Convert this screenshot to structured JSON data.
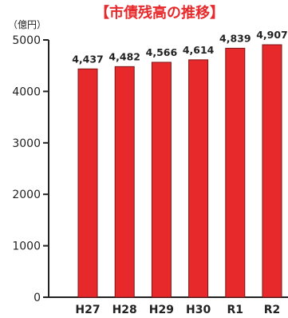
{
  "chart_data": {
    "type": "bar",
    "title": "【市債残高の推移】",
    "ylabel": "（億円）",
    "xlabel": "",
    "categories": [
      "H27",
      "H28",
      "H29",
      "H30",
      "R1",
      "R2"
    ],
    "values": [
      4437,
      4482,
      4566,
      4614,
      4839,
      4907
    ],
    "data_labels": [
      "4,437",
      "4,482",
      "4,566",
      "4,614",
      "4,839",
      "4,907"
    ],
    "ylim": [
      0,
      5000
    ],
    "yticks": [
      0,
      1000,
      2000,
      3000,
      4000,
      5000
    ],
    "grid": false,
    "colors": {
      "bar_fill": "#e8292b",
      "bar_stroke": "#7a1515",
      "title": "#e8292b",
      "axis": "#222222"
    }
  }
}
